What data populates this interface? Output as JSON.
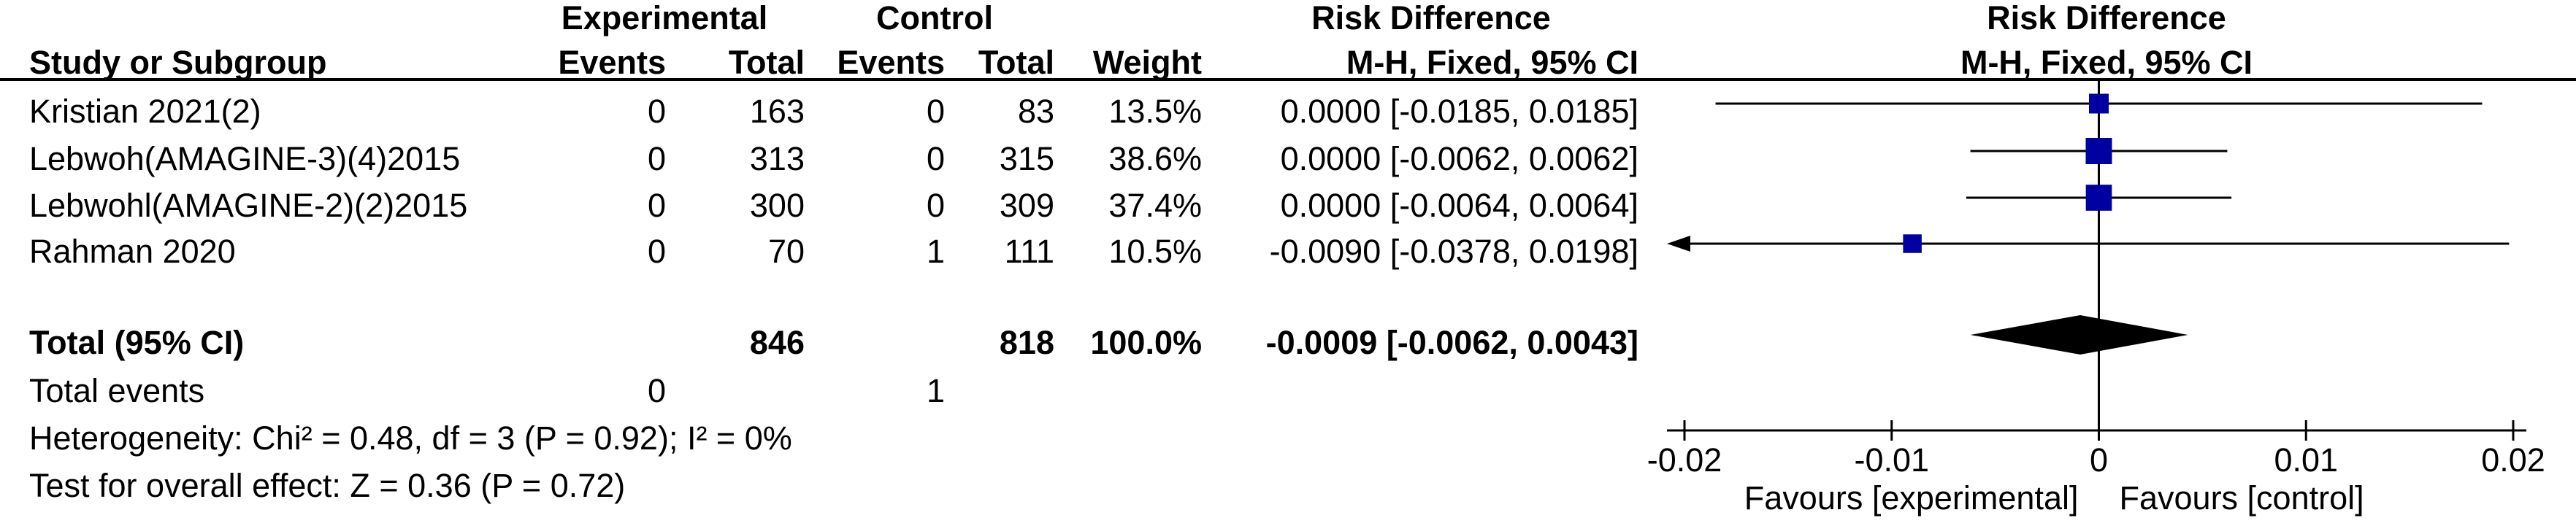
{
  "header": {
    "experimental": "Experimental",
    "control": "Control",
    "risk_difference": "Risk Difference",
    "study_or_subgroup": "Study or Subgroup",
    "events_exp": "Events",
    "total_exp": "Total",
    "events_ctl": "Events",
    "total_ctl": "Total",
    "weight": "Weight",
    "method": "M-H, Fixed, 95% CI",
    "plot_title": "Risk Difference",
    "plot_method": "M-H, Fixed, 95% CI"
  },
  "studies": [
    {
      "name": "Kristian 2021(2)",
      "exp_events": "0",
      "exp_total": "163",
      "ctl_events": "0",
      "ctl_total": "83",
      "weight": "13.5%",
      "ci": "0.0000 [-0.0185, 0.0185]"
    },
    {
      "name": "Lebwoh(AMAGINE-3)(4)2015",
      "exp_events": "0",
      "exp_total": "313",
      "ctl_events": "0",
      "ctl_total": "315",
      "weight": "38.6%",
      "ci": "0.0000 [-0.0062, 0.0062]"
    },
    {
      "name": "Lebwohl(AMAGINE-2)(2)2015",
      "exp_events": "0",
      "exp_total": "300",
      "ctl_events": "0",
      "ctl_total": "309",
      "weight": "37.4%",
      "ci": "0.0000 [-0.0064, 0.0064]"
    },
    {
      "name": "Rahman 2020",
      "exp_events": "0",
      "exp_total": "70",
      "ctl_events": "1",
      "ctl_total": "111",
      "weight": "10.5%",
      "ci": "-0.0090 [-0.0378, 0.0198]"
    }
  ],
  "total": {
    "label": "Total (95% CI)",
    "exp_total": "846",
    "ctl_total": "818",
    "weight": "100.0%",
    "ci": "-0.0009 [-0.0062, 0.0043]"
  },
  "total_events": {
    "label": "Total events",
    "exp": "0",
    "ctl": "1"
  },
  "heterogeneity": "Heterogeneity: Chi² = 0.48, df = 3 (P = 0.92); I² = 0%",
  "overall_effect": "Test for overall effect: Z = 0.36 (P = 0.72)",
  "colors": {
    "square": "#0000a0",
    "diamond": "#000000",
    "line": "#000000"
  },
  "chart_data": {
    "type": "forest",
    "title": "Risk Difference",
    "subtitle": "M-H, Fixed, 95% CI",
    "xlim": [
      -0.02,
      0.02
    ],
    "ticks": [
      -0.02,
      -0.01,
      0,
      0.01,
      0.02
    ],
    "tick_labels": [
      "-0.02",
      "-0.01",
      "0",
      "0.01",
      "0.02"
    ],
    "left_label": "Favours [experimental]",
    "right_label": "Favours [control]",
    "studies": [
      {
        "name": "Kristian 2021(2)",
        "estimate": 0.0,
        "lower": -0.0185,
        "upper": 0.0185,
        "weight": 13.5
      },
      {
        "name": "Lebwoh(AMAGINE-3)(4)2015",
        "estimate": 0.0,
        "lower": -0.0062,
        "upper": 0.0062,
        "weight": 38.6
      },
      {
        "name": "Lebwohl(AMAGINE-2)(2)2015",
        "estimate": 0.0,
        "lower": -0.0064,
        "upper": 0.0064,
        "weight": 37.4
      },
      {
        "name": "Rahman 2020",
        "estimate": -0.009,
        "lower": -0.0378,
        "upper": 0.0198,
        "weight": 10.5
      }
    ],
    "pooled": {
      "estimate": -0.0009,
      "lower": -0.0062,
      "upper": 0.0043
    }
  }
}
